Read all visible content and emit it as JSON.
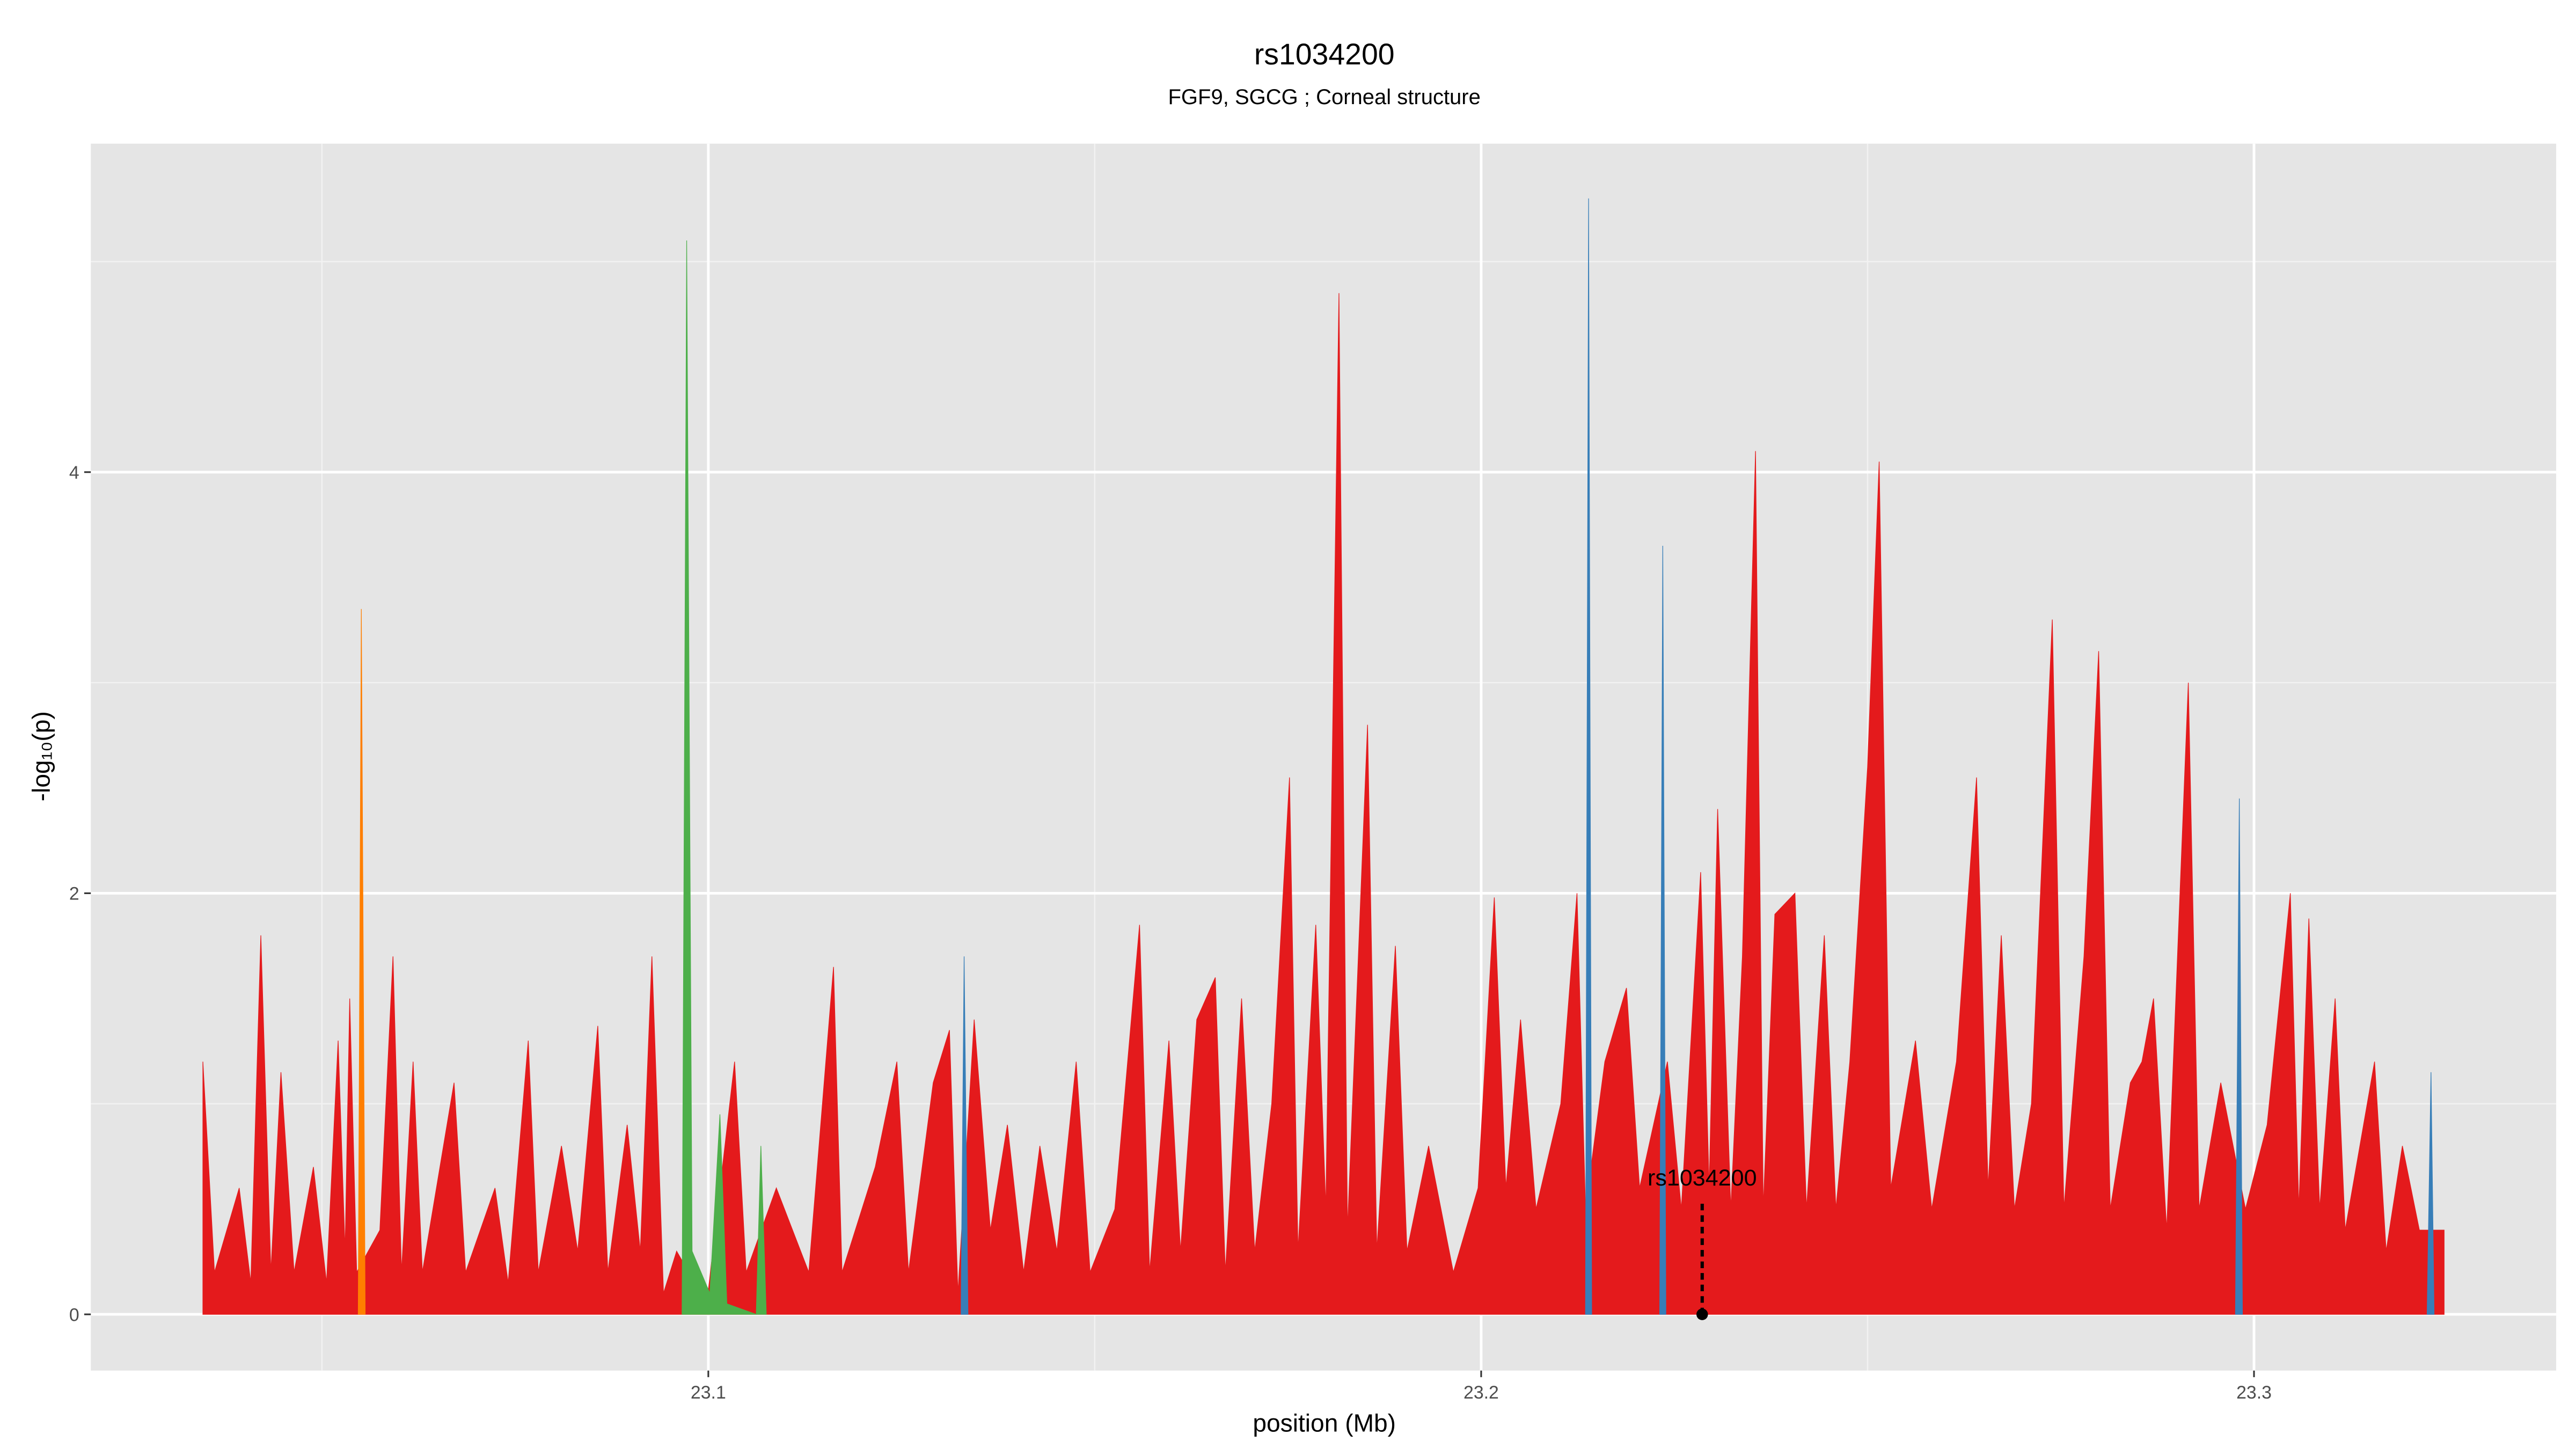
{
  "chart_data": {
    "type": "area",
    "title": "rs1034200",
    "subtitle": "FGF9, SGCG ; Corneal structure",
    "x_label": "position (Mb)",
    "y_label": "-log₁₀(p)",
    "xlim": [
      23.0201,
      23.3391
    ],
    "ylim": [
      -0.267,
      5.56
    ],
    "xticks": [
      23.1,
      23.2,
      23.3
    ],
    "yticks": [
      0,
      2,
      4
    ],
    "xminorticks": [
      23.05,
      23.15,
      23.25
    ],
    "yminorticks": [
      1,
      3,
      5
    ],
    "grid": true,
    "annotation": {
      "text": "rs1034200",
      "x": 23.2286,
      "y": 0
    },
    "series": [
      {
        "color": "#e41a1c",
        "x": [
          23.0346,
          23.0361,
          23.0393,
          23.0408,
          23.0421,
          23.0434,
          23.0447,
          23.0464,
          23.0489,
          23.0506,
          23.0521,
          23.053,
          23.0536,
          23.0545,
          23.0575,
          23.0592,
          23.0603,
          23.0618,
          23.063,
          23.0671,
          23.0686,
          23.0724,
          23.0741,
          23.0767,
          23.078,
          23.081,
          23.0831,
          23.0857,
          23.087,
          23.0895,
          23.0912,
          23.0927,
          23.0942,
          23.0959,
          23.0998,
          23.1034,
          23.1049,
          23.1088,
          23.113,
          23.1162,
          23.1173,
          23.1216,
          23.1244,
          23.1259,
          23.1291,
          23.1312,
          23.1323,
          23.1344,
          23.1365,
          23.1387,
          23.1408,
          23.1429,
          23.1451,
          23.1476,
          23.1494,
          23.1526,
          23.1558,
          23.1571,
          23.1596,
          23.1611,
          23.1632,
          23.1656,
          23.1669,
          23.169,
          23.1707,
          23.1729,
          23.1752,
          23.1763,
          23.1786,
          23.1799,
          23.1816,
          23.1827,
          23.1853,
          23.1865,
          23.1889,
          23.1904,
          23.1932,
          23.1964,
          23.1996,
          23.2017,
          23.2032,
          23.2051,
          23.2071,
          23.2103,
          23.2124,
          23.2135,
          23.216,
          23.2188,
          23.2205,
          23.2241,
          23.2259,
          23.2284,
          23.2295,
          23.2306,
          23.2323,
          23.2338,
          23.2355,
          23.2365,
          23.238,
          23.2406,
          23.2421,
          23.2444,
          23.2459,
          23.2477,
          23.25,
          23.2515,
          23.253,
          23.2562,
          23.2583,
          23.2615,
          23.2641,
          23.2656,
          23.2673,
          23.269,
          23.2712,
          23.2739,
          23.2754,
          23.278,
          23.2799,
          23.2814,
          23.284,
          23.2855,
          23.287,
          23.2887,
          23.2915,
          23.2929,
          23.2957,
          23.2989,
          23.3017,
          23.3047,
          23.3058,
          23.3071,
          23.3085,
          23.3105,
          23.3118,
          23.3156,
          23.3171,
          23.3192,
          23.3214,
          23.3246
        ],
        "values": [
          1.2,
          0.2,
          0.6,
          0.15,
          1.8,
          0.2,
          1.15,
          0.2,
          0.7,
          0.15,
          1.3,
          0.3,
          1.5,
          0.2,
          0.4,
          1.7,
          0.2,
          1.2,
          0.2,
          1.1,
          0.2,
          0.6,
          0.15,
          1.3,
          0.2,
          0.8,
          0.3,
          1.37,
          0.2,
          0.9,
          0.3,
          1.7,
          0.1,
          0.3,
          0.05,
          1.2,
          0.2,
          0.6,
          0.2,
          1.65,
          0.2,
          0.7,
          1.2,
          0.2,
          1.1,
          1.35,
          0.1,
          1.4,
          0.4,
          0.9,
          0.2,
          0.8,
          0.3,
          1.2,
          0.2,
          0.5,
          1.85,
          0.2,
          1.3,
          0.3,
          1.4,
          1.6,
          0.2,
          1.5,
          0.3,
          1.0,
          2.55,
          0.3,
          1.85,
          0.5,
          4.85,
          0.4,
          2.8,
          0.3,
          1.75,
          0.3,
          0.8,
          0.2,
          0.6,
          1.98,
          0.6,
          1.4,
          0.5,
          1.0,
          2.0,
          0.5,
          1.2,
          1.55,
          0.6,
          1.2,
          0.5,
          2.1,
          0.6,
          2.4,
          0.5,
          1.7,
          4.1,
          0.5,
          1.9,
          2.0,
          0.5,
          1.8,
          0.5,
          1.2,
          2.6,
          4.05,
          0.6,
          1.3,
          0.5,
          1.2,
          2.55,
          0.6,
          1.8,
          0.5,
          1.0,
          3.3,
          0.5,
          1.7,
          3.15,
          0.5,
          1.1,
          1.2,
          1.5,
          0.4,
          3.0,
          0.5,
          1.1,
          0.5,
          0.9,
          2.0,
          0.5,
          1.88,
          0.5,
          1.5,
          0.4,
          1.2,
          0.3,
          0.8,
          0.4,
          0.4
        ]
      },
      {
        "color": "#ff7f00",
        "x": [
          23.0547,
          23.0551,
          23.0556
        ],
        "values": [
          0,
          3.35,
          0
        ]
      },
      {
        "color": "#377eb8",
        "x": [
          23.1327,
          23.1331,
          23.1336,
          null,
          23.2135,
          23.2139,
          23.2143,
          null,
          23.2231,
          23.2235,
          23.2239,
          null,
          23.2976,
          23.2981,
          23.2985,
          null,
          23.3224,
          23.3229,
          23.3233
        ],
        "values": [
          0,
          1.7,
          0,
          null,
          0,
          5.3,
          0,
          null,
          0,
          3.65,
          0,
          null,
          0,
          2.45,
          0,
          null,
          0,
          1.15,
          0
        ]
      },
      {
        "color": "#4daf4a",
        "x": [
          23.0966,
          23.0972,
          23.0979,
          23.1002,
          23.1015,
          23.1024,
          23.1062,
          23.1068,
          23.1075
        ],
        "values": [
          0,
          5.1,
          0.3,
          0.1,
          0.95,
          0.05,
          0,
          0.8,
          0
        ]
      }
    ]
  }
}
